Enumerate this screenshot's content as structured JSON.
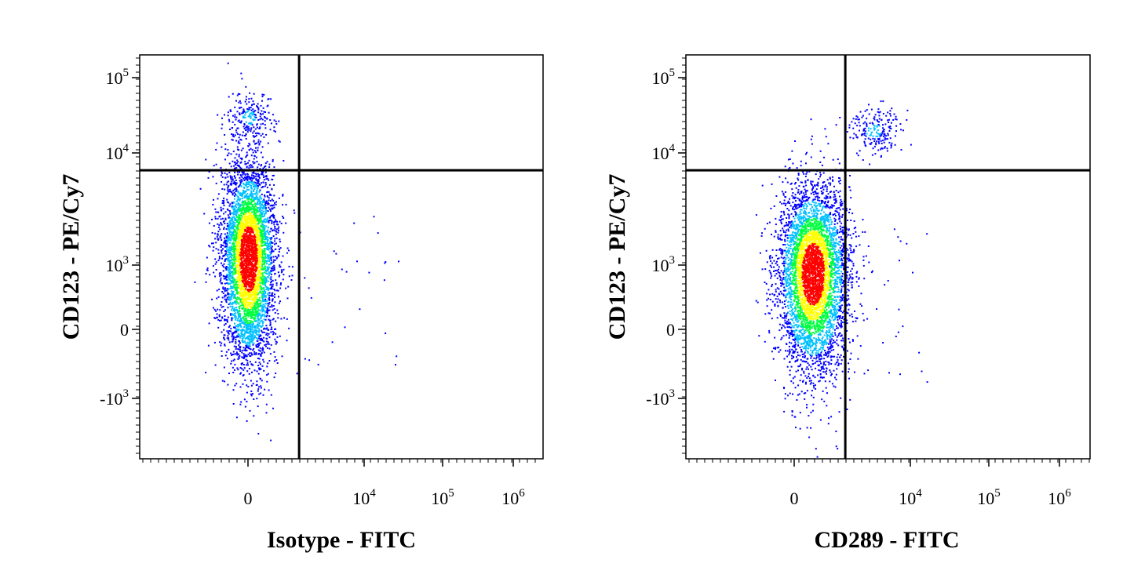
{
  "chart_data": [
    {
      "type": "scatter",
      "title": "",
      "xlabel": "Isotype - FITC",
      "ylabel": "CD123 - PE/Cy7",
      "x_scale": "biexponential",
      "y_scale": "biexponential",
      "x_ticks": [
        {
          "base": "0",
          "exp": ""
        },
        {
          "base": "10",
          "exp": "4"
        },
        {
          "base": "10",
          "exp": "5"
        },
        {
          "base": "10",
          "exp": "6"
        }
      ],
      "y_ticks": [
        {
          "base": "10",
          "exp": "5"
        },
        {
          "base": "10",
          "exp": "4"
        },
        {
          "base": "10",
          "exp": "3"
        },
        {
          "base": "0",
          "exp": ""
        },
        {
          "base": "-10",
          "exp": "3"
        }
      ],
      "quadrant_gate": {
        "x": 1200,
        "y": 7000
      },
      "populations": [
        {
          "name": "",
          "center": [
            0,
            1200
          ],
          "share": 0.96
        },
        {
          "name": "",
          "center": [
            0,
            30000
          ],
          "share": 0.04
        }
      ],
      "grid": false,
      "density_coloring": true
    },
    {
      "type": "scatter",
      "title": "",
      "xlabel": "CD289 - FITC",
      "ylabel": "CD123 - PE/Cy7",
      "x_scale": "biexponential",
      "y_scale": "biexponential",
      "x_ticks": [
        {
          "base": "0",
          "exp": ""
        },
        {
          "base": "10",
          "exp": "4"
        },
        {
          "base": "10",
          "exp": "5"
        },
        {
          "base": "10",
          "exp": "6"
        }
      ],
      "y_ticks": [
        {
          "base": "10",
          "exp": "5"
        },
        {
          "base": "10",
          "exp": "4"
        },
        {
          "base": "10",
          "exp": "3"
        },
        {
          "base": "0",
          "exp": ""
        },
        {
          "base": "-10",
          "exp": "3"
        }
      ],
      "quadrant_gate": {
        "x": 1200,
        "y": 7000
      },
      "populations": [
        {
          "name": "",
          "center": [
            400,
            900
          ],
          "share": 0.96
        },
        {
          "name": "",
          "center": [
            3000,
            20000
          ],
          "share": 0.04
        }
      ],
      "grid": false,
      "density_coloring": true
    }
  ],
  "colors": {
    "density_low": "#0000ff",
    "density_mid_low": "#00c0ff",
    "density_mid": "#00ff40",
    "density_mid_high": "#ffff00",
    "density_high": "#ff0000",
    "axis": "#000000",
    "gate": "#000000"
  }
}
